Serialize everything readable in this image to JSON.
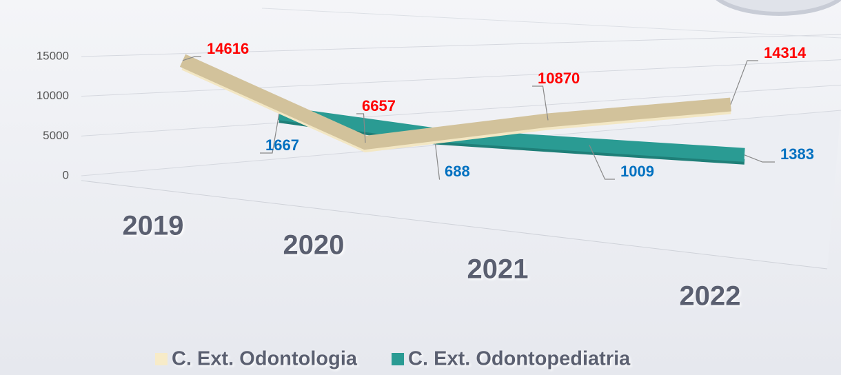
{
  "chart_data": {
    "type": "line",
    "categories": [
      "2019",
      "2020",
      "2021",
      "2022"
    ],
    "series": [
      {
        "name": "C. Ext. Odontologia",
        "color": "#d2c29b",
        "label_color": "#ff0000",
        "values": [
          14616,
          6657,
          10870,
          14314
        ]
      },
      {
        "name": "C. Ext. Odontopediatria",
        "color": "#2a9b93",
        "label_color": "#0070c0",
        "values": [
          1667,
          688,
          1009,
          1383
        ]
      }
    ],
    "ylim": [
      0,
      15000
    ],
    "yticks": [
      0,
      5000,
      10000,
      15000
    ],
    "grid": true
  }
}
